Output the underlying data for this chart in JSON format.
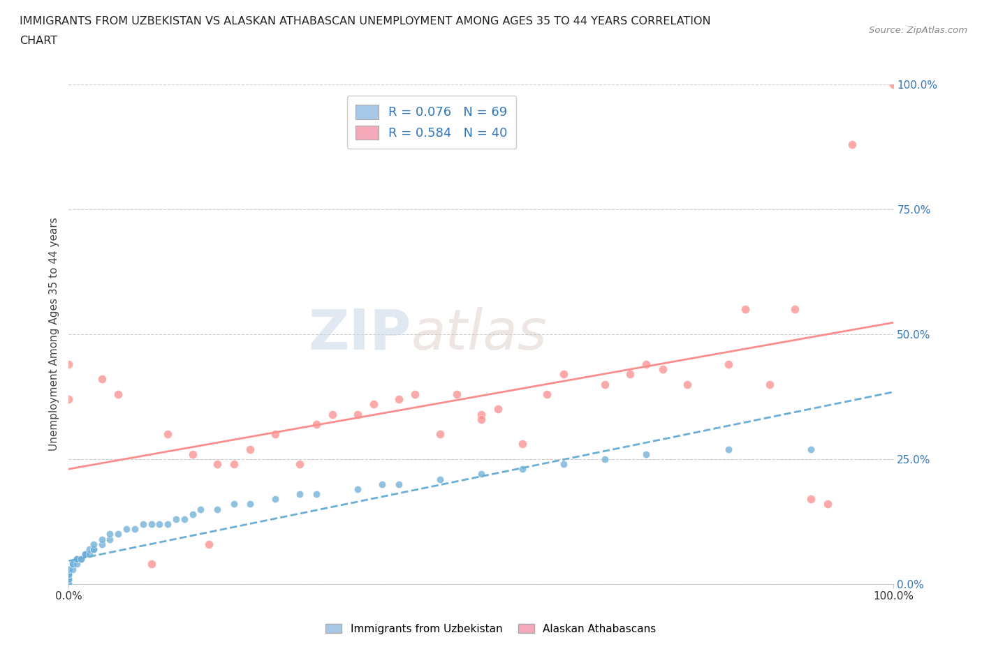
{
  "title_line1": "IMMIGRANTS FROM UZBEKISTAN VS ALASKAN ATHABASCAN UNEMPLOYMENT AMONG AGES 35 TO 44 YEARS CORRELATION",
  "title_line2": "CHART",
  "source": "Source: ZipAtlas.com",
  "ylabel": "Unemployment Among Ages 35 to 44 years",
  "xticklabels": [
    "0.0%",
    "100.0%"
  ],
  "ytick_positions": [
    0.0,
    0.25,
    0.5,
    0.75,
    1.0
  ],
  "yticklabels": [
    "0.0%",
    "25.0%",
    "50.0%",
    "75.0%",
    "100.0%"
  ],
  "legend_label1": "R = 0.076   N = 69",
  "legend_label2": "R = 0.584   N = 40",
  "legend_color1": "#a8c8e8",
  "legend_color2": "#f4a8b8",
  "color1": "#6baed6",
  "color2": "#fc8d8d",
  "trendline1_color": "#6baed6",
  "trendline2_color": "#fc8d8d",
  "background_color": "#ffffff",
  "watermark_zip": "ZIP",
  "watermark_atlas": "atlas",
  "blue_points_x": [
    0.0,
    0.0,
    0.0,
    0.0,
    0.0,
    0.0,
    0.0,
    0.0,
    0.0,
    0.0,
    0.0,
    0.0,
    0.0,
    0.0,
    0.0,
    0.0,
    0.0,
    0.0,
    0.0,
    0.0,
    0.005,
    0.005,
    0.005,
    0.01,
    0.01,
    0.01,
    0.01,
    0.015,
    0.015,
    0.02,
    0.02,
    0.02,
    0.025,
    0.025,
    0.03,
    0.03,
    0.03,
    0.04,
    0.04,
    0.05,
    0.05,
    0.06,
    0.07,
    0.08,
    0.09,
    0.1,
    0.11,
    0.12,
    0.13,
    0.14,
    0.15,
    0.16,
    0.18,
    0.2,
    0.22,
    0.25,
    0.28,
    0.3,
    0.35,
    0.38,
    0.4,
    0.45,
    0.5,
    0.55,
    0.6,
    0.65,
    0.7,
    0.8,
    0.9
  ],
  "blue_points_y": [
    0.0,
    0.0,
    0.0,
    0.0,
    0.0,
    0.0,
    0.0,
    0.0,
    0.0,
    0.0,
    0.01,
    0.01,
    0.01,
    0.02,
    0.02,
    0.02,
    0.02,
    0.03,
    0.03,
    0.03,
    0.03,
    0.04,
    0.04,
    0.04,
    0.05,
    0.05,
    0.05,
    0.05,
    0.05,
    0.06,
    0.06,
    0.06,
    0.06,
    0.07,
    0.07,
    0.07,
    0.08,
    0.08,
    0.09,
    0.09,
    0.1,
    0.1,
    0.11,
    0.11,
    0.12,
    0.12,
    0.12,
    0.12,
    0.13,
    0.13,
    0.14,
    0.15,
    0.15,
    0.16,
    0.16,
    0.17,
    0.18,
    0.18,
    0.19,
    0.2,
    0.2,
    0.21,
    0.22,
    0.23,
    0.24,
    0.25,
    0.26,
    0.27,
    0.27
  ],
  "pink_points_x": [
    0.0,
    0.0,
    0.04,
    0.06,
    0.1,
    0.12,
    0.15,
    0.17,
    0.18,
    0.2,
    0.22,
    0.25,
    0.28,
    0.3,
    0.32,
    0.35,
    0.37,
    0.4,
    0.42,
    0.45,
    0.47,
    0.5,
    0.5,
    0.52,
    0.55,
    0.58,
    0.6,
    0.65,
    0.68,
    0.7,
    0.72,
    0.75,
    0.8,
    0.82,
    0.85,
    0.88,
    0.9,
    0.92,
    0.95,
    1.0
  ],
  "pink_points_y": [
    0.44,
    0.37,
    0.41,
    0.38,
    0.04,
    0.3,
    0.26,
    0.08,
    0.24,
    0.24,
    0.27,
    0.3,
    0.24,
    0.32,
    0.34,
    0.34,
    0.36,
    0.37,
    0.38,
    0.3,
    0.38,
    0.34,
    0.33,
    0.35,
    0.28,
    0.38,
    0.42,
    0.4,
    0.42,
    0.44,
    0.43,
    0.4,
    0.44,
    0.55,
    0.4,
    0.55,
    0.17,
    0.16,
    0.88,
    1.0
  ]
}
